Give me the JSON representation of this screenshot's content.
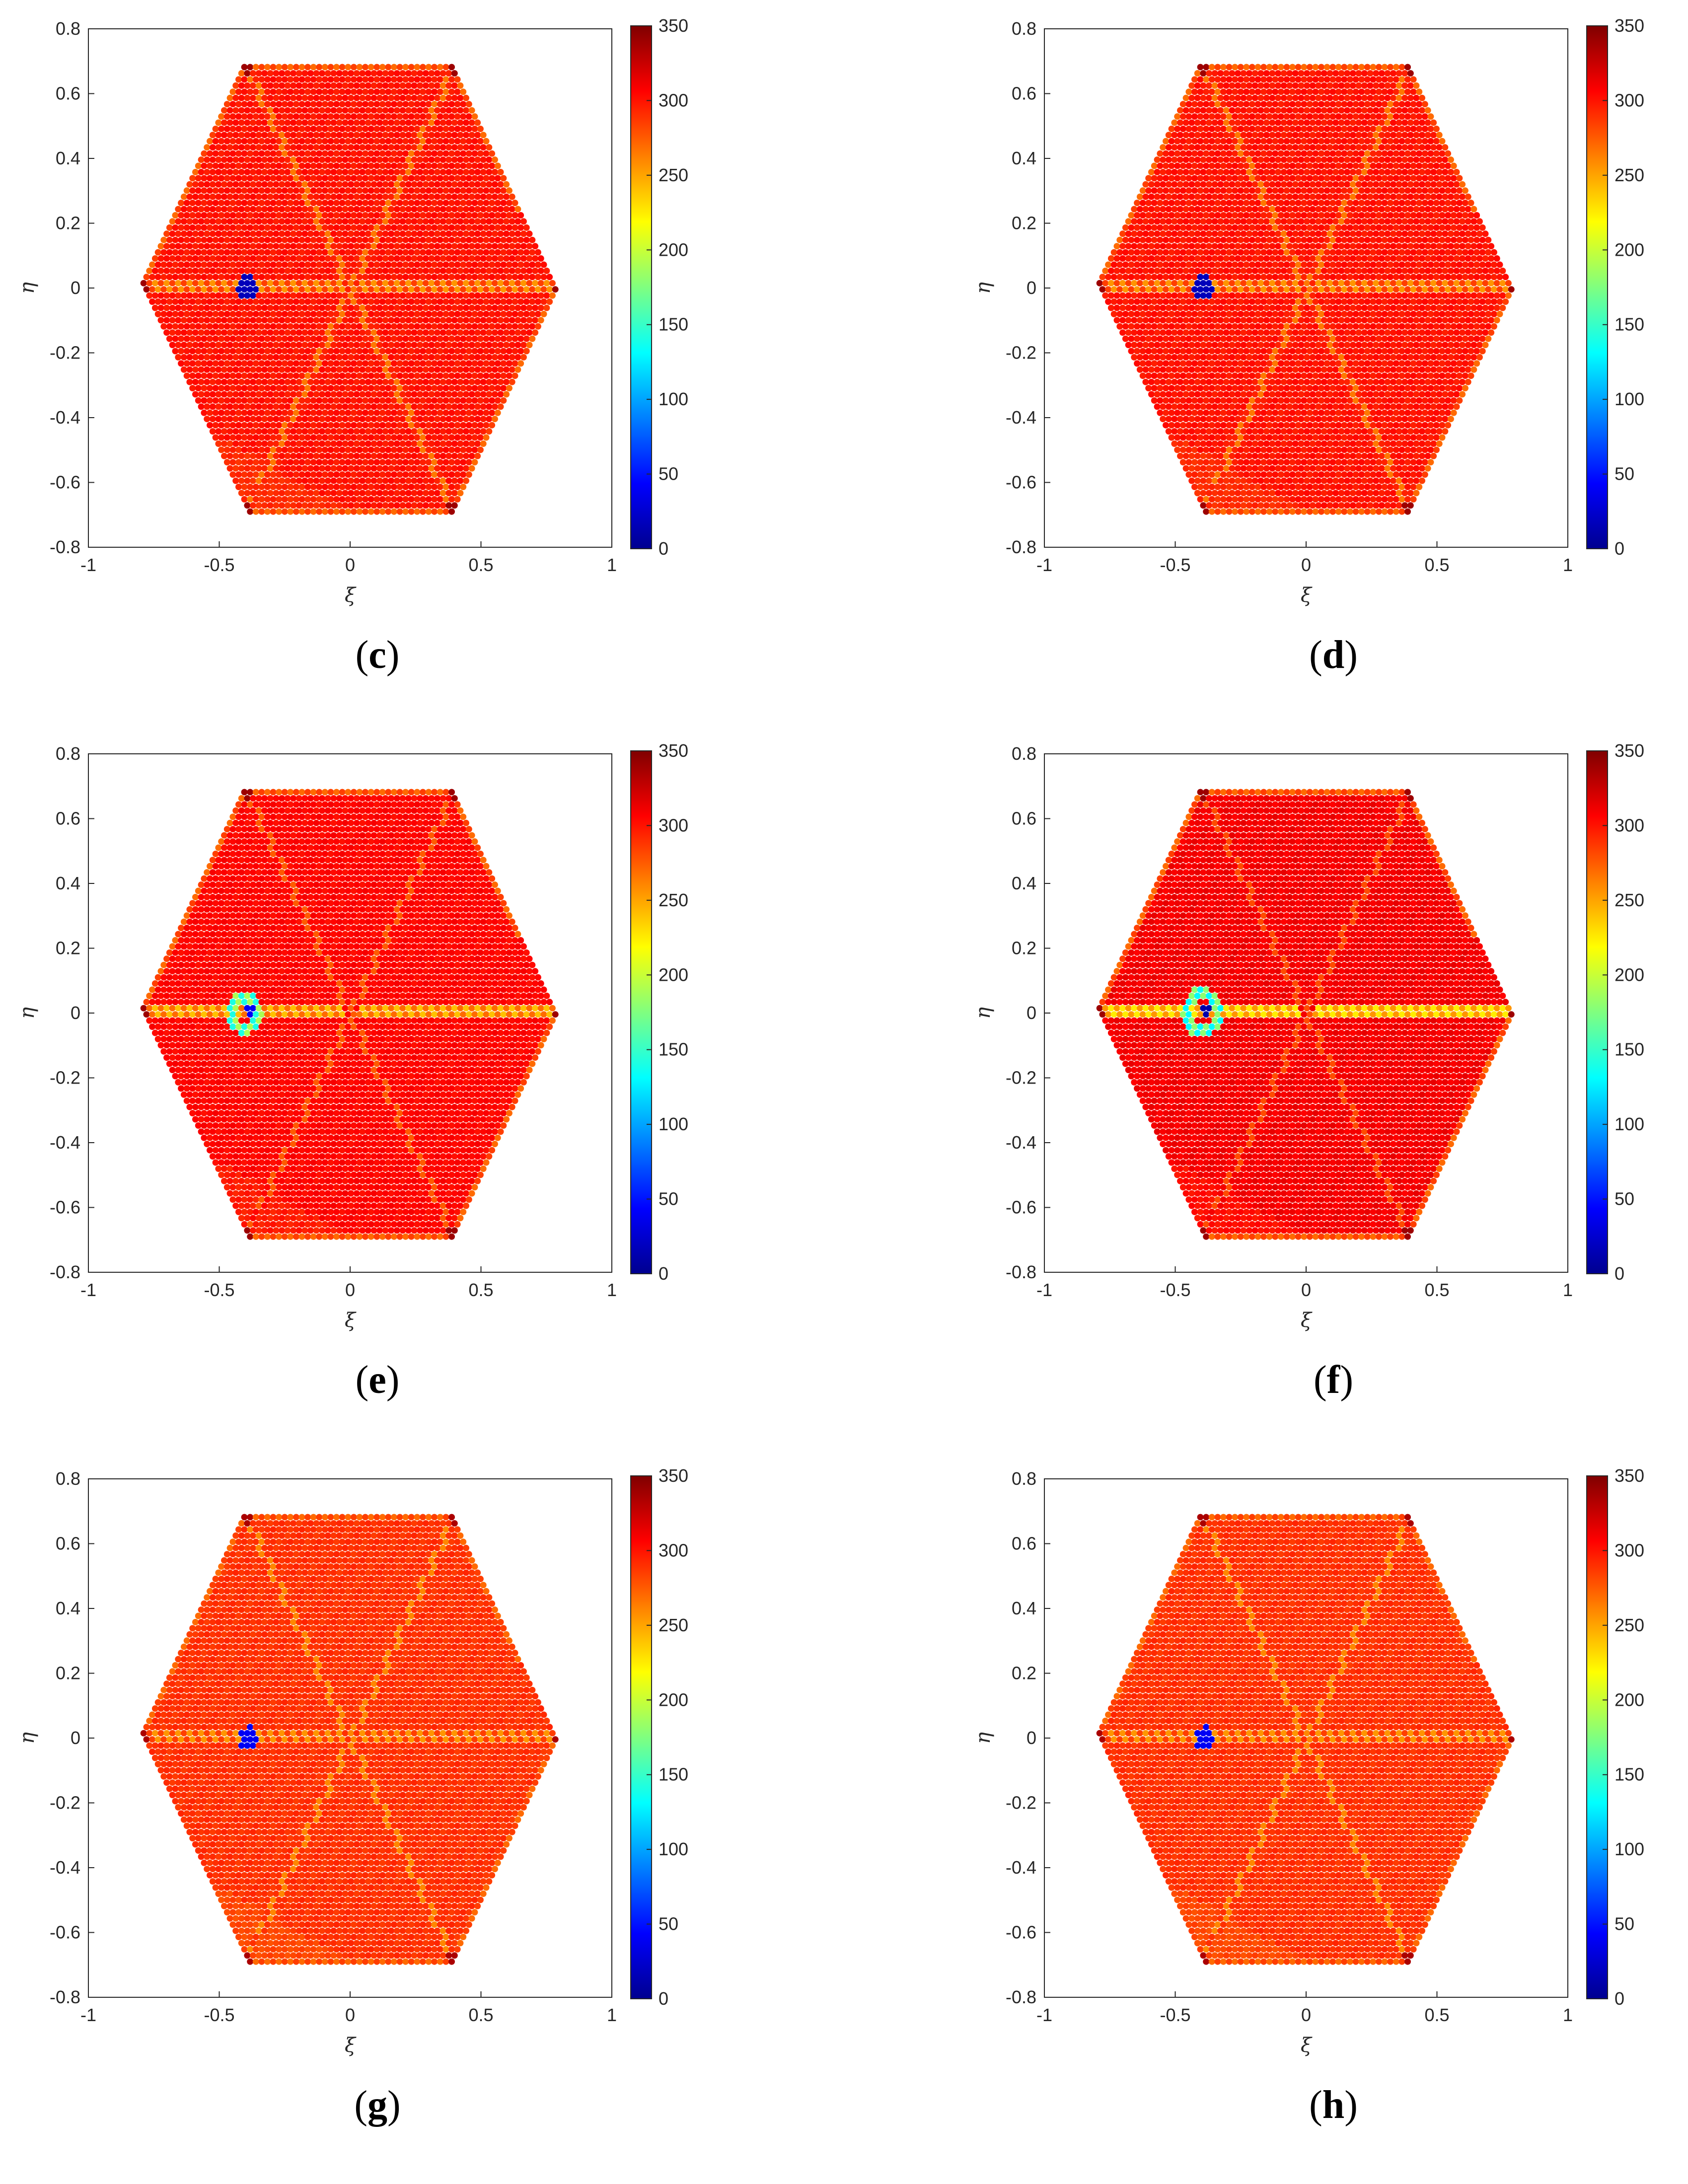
{
  "figure": {
    "panels": [
      {
        "label": "c"
      },
      {
        "label": "d"
      },
      {
        "label": "e"
      },
      {
        "label": "f"
      },
      {
        "label": "g"
      },
      {
        "label": "h"
      }
    ]
  },
  "chart_data": [
    {
      "panel": "c",
      "type": "heatmap",
      "xlabel": "ξ",
      "ylabel": "η",
      "xlim": [
        -1,
        1
      ],
      "ylim": [
        -0.8,
        0.8
      ],
      "xticks": [
        "-1",
        "-0.5",
        "0",
        "0.5",
        "1"
      ],
      "yticks": [
        "-0.8",
        "-0.6",
        "-0.4",
        "-0.2",
        "0",
        "0.2",
        "0.4",
        "0.6",
        "0.8"
      ],
      "colorbar": {
        "min": 0,
        "max": 350,
        "ticks": [
          "0",
          "50",
          "100",
          "150",
          "200",
          "250",
          "300",
          "350"
        ],
        "colormap": "jet"
      },
      "domain": "hexagon",
      "hexagon_vertices": [
        [
          -0.8,
          0
        ],
        [
          -0.4,
          0.69
        ],
        [
          0.4,
          0.69
        ],
        [
          0.8,
          0
        ],
        [
          0.4,
          -0.69
        ],
        [
          -0.4,
          -0.69
        ]
      ],
      "background_value": 300,
      "features": {
        "lines": [
          {
            "from": [
              -0.8,
              0
            ],
            "to": [
              0.8,
              0
            ],
            "value": 255
          },
          {
            "from": [
              -0.4,
              0.69
            ],
            "to": [
              0.4,
              -0.69
            ],
            "value": 265
          },
          {
            "from": [
              0.4,
              0.69
            ],
            "to": [
              -0.4,
              -0.69
            ],
            "value": 265
          }
        ],
        "void": {
          "center": [
            -0.39,
            0
          ],
          "radius": 0.04,
          "value": 20
        },
        "ring": null,
        "corner_value": 340
      }
    },
    {
      "panel": "d",
      "type": "heatmap",
      "xlabel": "ξ",
      "ylabel": "η",
      "xlim": [
        -1,
        1
      ],
      "ylim": [
        -0.8,
        0.8
      ],
      "xticks": [
        "-1",
        "-0.5",
        "0",
        "0.5",
        "1"
      ],
      "yticks": [
        "-0.8",
        "-0.6",
        "-0.4",
        "-0.2",
        "0",
        "0.2",
        "0.4",
        "0.6",
        "0.8"
      ],
      "colorbar": {
        "min": 0,
        "max": 350,
        "ticks": [
          "0",
          "50",
          "100",
          "150",
          "200",
          "250",
          "300",
          "350"
        ],
        "colormap": "jet"
      },
      "domain": "hexagon",
      "hexagon_vertices": [
        [
          -0.8,
          0
        ],
        [
          -0.4,
          0.69
        ],
        [
          0.4,
          0.69
        ],
        [
          0.8,
          0
        ],
        [
          0.4,
          -0.69
        ],
        [
          -0.4,
          -0.69
        ]
      ],
      "background_value": 300,
      "features": {
        "lines": [
          {
            "from": [
              -0.8,
              0
            ],
            "to": [
              0.8,
              0
            ],
            "value": 255
          },
          {
            "from": [
              -0.4,
              0.69
            ],
            "to": [
              0.4,
              -0.69
            ],
            "value": 265
          },
          {
            "from": [
              0.4,
              0.69
            ],
            "to": [
              -0.4,
              -0.69
            ],
            "value": 265
          }
        ],
        "void": {
          "center": [
            -0.39,
            0
          ],
          "radius": 0.04,
          "value": 20
        },
        "ring": null,
        "corner_value": 340
      }
    },
    {
      "panel": "e",
      "type": "heatmap",
      "xlabel": "ξ",
      "ylabel": "η",
      "xlim": [
        -1,
        1
      ],
      "ylim": [
        -0.8,
        0.8
      ],
      "xticks": [
        "-1",
        "-0.5",
        "0",
        "0.5",
        "1"
      ],
      "yticks": [
        "-0.8",
        "-0.6",
        "-0.4",
        "-0.2",
        "0",
        "0.2",
        "0.4",
        "0.6",
        "0.8"
      ],
      "colorbar": {
        "min": 0,
        "max": 350,
        "ticks": [
          "0",
          "50",
          "100",
          "150",
          "200",
          "250",
          "300",
          "350"
        ],
        "colormap": "jet"
      },
      "domain": "hexagon",
      "hexagon_vertices": [
        [
          -0.8,
          0
        ],
        [
          -0.4,
          0.69
        ],
        [
          0.4,
          0.69
        ],
        [
          0.8,
          0
        ],
        [
          0.4,
          -0.69
        ],
        [
          -0.4,
          -0.69
        ]
      ],
      "background_value": 305,
      "features": {
        "lines": [
          {
            "from": [
              -0.8,
              0
            ],
            "to": [
              0.8,
              0
            ],
            "value": 240
          },
          {
            "from": [
              -0.4,
              0.69
            ],
            "to": [
              0.4,
              -0.69
            ],
            "value": 275
          },
          {
            "from": [
              0.4,
              0.69
            ],
            "to": [
              -0.4,
              -0.69
            ],
            "value": 275
          }
        ],
        "void": {
          "center": [
            -0.38,
            0
          ],
          "radius": 0.02,
          "value": 40
        },
        "ring": {
          "center": [
            -0.4,
            0
          ],
          "radius": 0.05,
          "value": 140
        },
        "corner_value": 340
      }
    },
    {
      "panel": "f",
      "type": "heatmap",
      "xlabel": "ξ",
      "ylabel": "η",
      "xlim": [
        -1,
        1
      ],
      "ylim": [
        -0.8,
        0.8
      ],
      "xticks": [
        "-1",
        "-0.5",
        "0",
        "0.5",
        "1"
      ],
      "yticks": [
        "-0.8",
        "-0.6",
        "-0.4",
        "-0.2",
        "0",
        "0.2",
        "0.4",
        "0.6",
        "0.8"
      ],
      "colorbar": {
        "min": 0,
        "max": 350,
        "ticks": [
          "0",
          "50",
          "100",
          "150",
          "200",
          "250",
          "300",
          "350"
        ],
        "colormap": "jet"
      },
      "domain": "hexagon",
      "hexagon_vertices": [
        [
          -0.8,
          0
        ],
        [
          -0.4,
          0.69
        ],
        [
          0.4,
          0.69
        ],
        [
          0.8,
          0
        ],
        [
          0.4,
          -0.69
        ],
        [
          -0.4,
          -0.69
        ]
      ],
      "background_value": 310,
      "features": {
        "lines": [
          {
            "from": [
              -0.8,
              0
            ],
            "to": [
              0.8,
              0
            ],
            "value": 225
          },
          {
            "from": [
              -0.4,
              0.69
            ],
            "to": [
              0.4,
              -0.69
            ],
            "value": 280
          },
          {
            "from": [
              0.4,
              0.69
            ],
            "to": [
              -0.4,
              -0.69
            ],
            "value": 280
          }
        ],
        "void": {
          "center": [
            -0.38,
            0
          ],
          "radius": 0.02,
          "value": 15
        },
        "ring": {
          "center": [
            -0.4,
            0
          ],
          "radius": 0.06,
          "value": 130
        },
        "corner_value": 340
      }
    },
    {
      "panel": "g",
      "type": "heatmap",
      "xlabel": "ξ",
      "ylabel": "η",
      "xlim": [
        -1,
        1
      ],
      "ylim": [
        -0.8,
        0.8
      ],
      "xticks": [
        "-1",
        "-0.5",
        "0",
        "0.5",
        "1"
      ],
      "yticks": [
        "-0.8",
        "-0.6",
        "-0.4",
        "-0.2",
        "0",
        "0.2",
        "0.4",
        "0.6",
        "0.8"
      ],
      "colorbar": {
        "min": 0,
        "max": 350,
        "ticks": [
          "0",
          "50",
          "100",
          "150",
          "200",
          "250",
          "300",
          "350"
        ],
        "colormap": "jet"
      },
      "domain": "hexagon",
      "hexagon_vertices": [
        [
          -0.8,
          0
        ],
        [
          -0.4,
          0.69
        ],
        [
          0.4,
          0.69
        ],
        [
          0.8,
          0
        ],
        [
          0.4,
          -0.69
        ],
        [
          -0.4,
          -0.69
        ]
      ],
      "background_value": 290,
      "features": {
        "lines": [
          {
            "from": [
              -0.8,
              0
            ],
            "to": [
              0.8,
              0
            ],
            "value": 255
          },
          {
            "from": [
              -0.4,
              0.69
            ],
            "to": [
              0.4,
              -0.69
            ],
            "value": 260
          },
          {
            "from": [
              0.4,
              0.69
            ],
            "to": [
              -0.4,
              -0.69
            ],
            "value": 260
          }
        ],
        "void": {
          "center": [
            -0.39,
            0
          ],
          "radius": 0.035,
          "value": 40
        },
        "ring": null,
        "corner_value": 335
      }
    },
    {
      "panel": "h",
      "type": "heatmap",
      "xlabel": "ξ",
      "ylabel": "η",
      "xlim": [
        -1,
        1
      ],
      "ylim": [
        -0.8,
        0.8
      ],
      "xticks": [
        "-1",
        "-0.5",
        "0",
        "0.5",
        "1"
      ],
      "yticks": [
        "-0.8",
        "-0.6",
        "-0.4",
        "-0.2",
        "0",
        "0.2",
        "0.4",
        "0.6",
        "0.8"
      ],
      "colorbar": {
        "min": 0,
        "max": 350,
        "ticks": [
          "0",
          "50",
          "100",
          "150",
          "200",
          "250",
          "300",
          "350"
        ],
        "colormap": "jet"
      },
      "domain": "hexagon",
      "hexagon_vertices": [
        [
          -0.8,
          0
        ],
        [
          -0.4,
          0.69
        ],
        [
          0.4,
          0.69
        ],
        [
          0.8,
          0
        ],
        [
          0.4,
          -0.69
        ],
        [
          -0.4,
          -0.69
        ]
      ],
      "background_value": 290,
      "features": {
        "lines": [
          {
            "from": [
              -0.8,
              0
            ],
            "to": [
              0.8,
              0
            ],
            "value": 255
          },
          {
            "from": [
              -0.4,
              0.69
            ],
            "to": [
              0.4,
              -0.69
            ],
            "value": 260
          },
          {
            "from": [
              0.4,
              0.69
            ],
            "to": [
              -0.4,
              -0.69
            ],
            "value": 260
          }
        ],
        "void": {
          "center": [
            -0.39,
            0
          ],
          "radius": 0.035,
          "value": 40
        },
        "ring": null,
        "corner_value": 335
      }
    }
  ]
}
